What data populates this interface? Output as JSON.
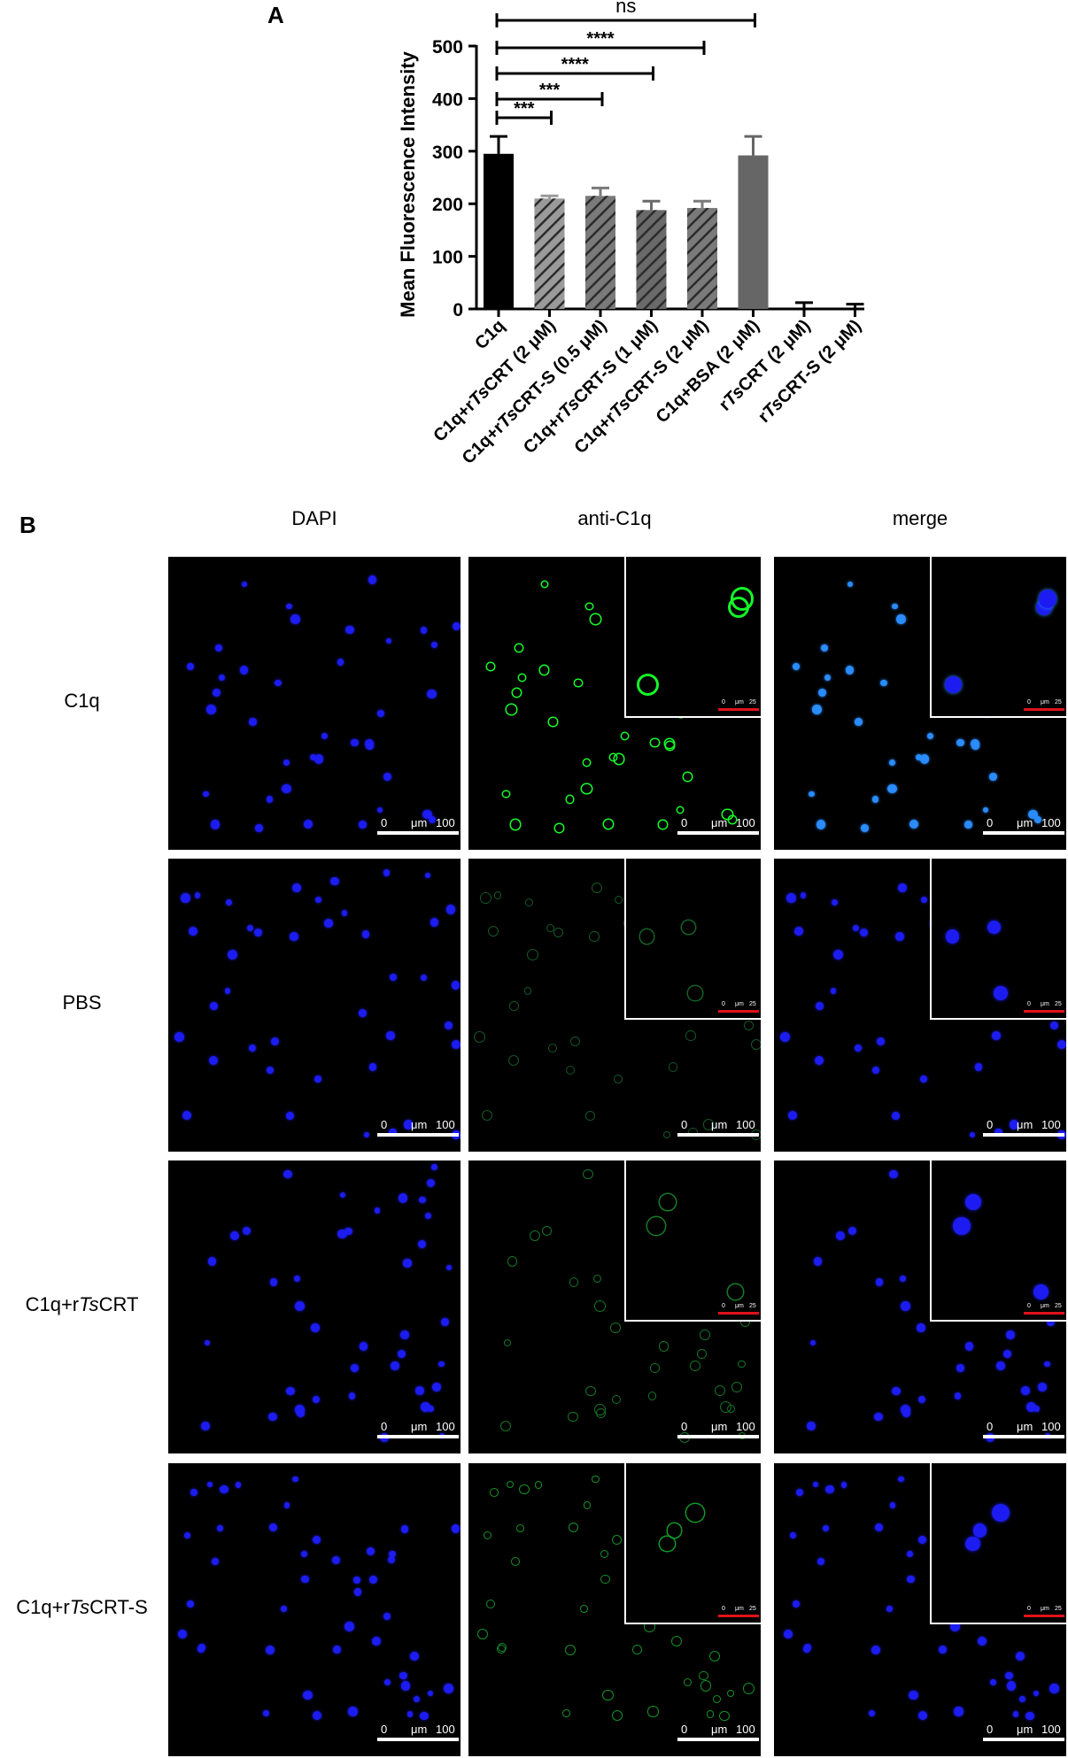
{
  "panel_a_label": "A",
  "panel_b_label": "B",
  "chart_data": {
    "type": "bar",
    "ylabel": "Mean Fluorescence Intensity",
    "ylim": [
      0,
      500
    ],
    "yticks": [
      "0",
      "100",
      "200",
      "300",
      "400",
      "500"
    ],
    "categories": [
      {
        "parts": [
          {
            "t": "C1q",
            "i": false
          }
        ]
      },
      {
        "parts": [
          {
            "t": "C1q+r",
            "i": false
          },
          {
            "t": "Ts",
            "i": true
          },
          {
            "t": "CRT (2 μM)",
            "i": false
          }
        ]
      },
      {
        "parts": [
          {
            "t": "C1q+r",
            "i": false
          },
          {
            "t": "Ts",
            "i": true
          },
          {
            "t": "CRT-S (0.5 μM)",
            "i": false
          }
        ]
      },
      {
        "parts": [
          {
            "t": "C1q+r",
            "i": false
          },
          {
            "t": "Ts",
            "i": true
          },
          {
            "t": "CRT-S (1 μM)",
            "i": false
          }
        ]
      },
      {
        "parts": [
          {
            "t": "C1q+r",
            "i": false
          },
          {
            "t": "Ts",
            "i": true
          },
          {
            "t": "CRT-S (2 μM)",
            "i": false
          }
        ]
      },
      {
        "parts": [
          {
            "t": "C1q+BSA (2 μM)",
            "i": false
          }
        ]
      },
      {
        "parts": [
          {
            "t": "r",
            "i": false
          },
          {
            "t": "Ts",
            "i": true
          },
          {
            "t": "CRT (2 μM)",
            "i": false
          }
        ]
      },
      {
        "parts": [
          {
            "t": "r",
            "i": false
          },
          {
            "t": "Ts",
            "i": true
          },
          {
            "t": "CRT-S (2 μM)",
            "i": false
          }
        ]
      }
    ],
    "values": [
      295,
      210,
      215,
      188,
      192,
      292,
      0,
      0
    ],
    "errors": [
      33,
      5,
      15,
      17,
      13,
      36,
      12,
      9
    ],
    "bar_styles": [
      {
        "fill": "#000000",
        "hatch": false
      },
      {
        "fill": "#9a9a9a",
        "hatch": true
      },
      {
        "fill": "#7a7a7a",
        "hatch": true
      },
      {
        "fill": "#6a6a6a",
        "hatch": true
      },
      {
        "fill": "#7a7a7a",
        "hatch": true
      },
      {
        "fill": "#666666",
        "hatch": false
      },
      {
        "fill": "#000000",
        "hatch": false
      },
      {
        "fill": "#000000",
        "hatch": false
      }
    ],
    "significance": [
      {
        "from": 0,
        "to": 1,
        "label": "***"
      },
      {
        "from": 0,
        "to": 2,
        "label": "***"
      },
      {
        "from": 0,
        "to": 3,
        "label": "****"
      },
      {
        "from": 0,
        "to": 4,
        "label": "****"
      },
      {
        "from": 0,
        "to": 5,
        "label": "ns"
      }
    ]
  },
  "panel_b": {
    "columns": [
      "DAPI",
      "anti-C1q",
      "merge"
    ],
    "rows": [
      {
        "pre": "C1q",
        "it": "",
        "post": ""
      },
      {
        "pre": "PBS",
        "it": "",
        "post": ""
      },
      {
        "pre": "C1q+r",
        "it": "Ts",
        "post": "CRT"
      },
      {
        "pre": "C1q+r",
        "it": "Ts",
        "post": "CRT-S"
      }
    ],
    "green_intensity": [
      1.0,
      0.15,
      0.3,
      0.45
    ],
    "scale_bar": {
      "start": "0",
      "unit": "μm",
      "end": "100"
    },
    "inset_scale_bar": {
      "start": "0",
      "unit": "μm",
      "end": "25"
    },
    "colors": {
      "dapi": "#1c1cf2",
      "fitc": "#1fd13a",
      "merge": "#2a8cff"
    }
  }
}
